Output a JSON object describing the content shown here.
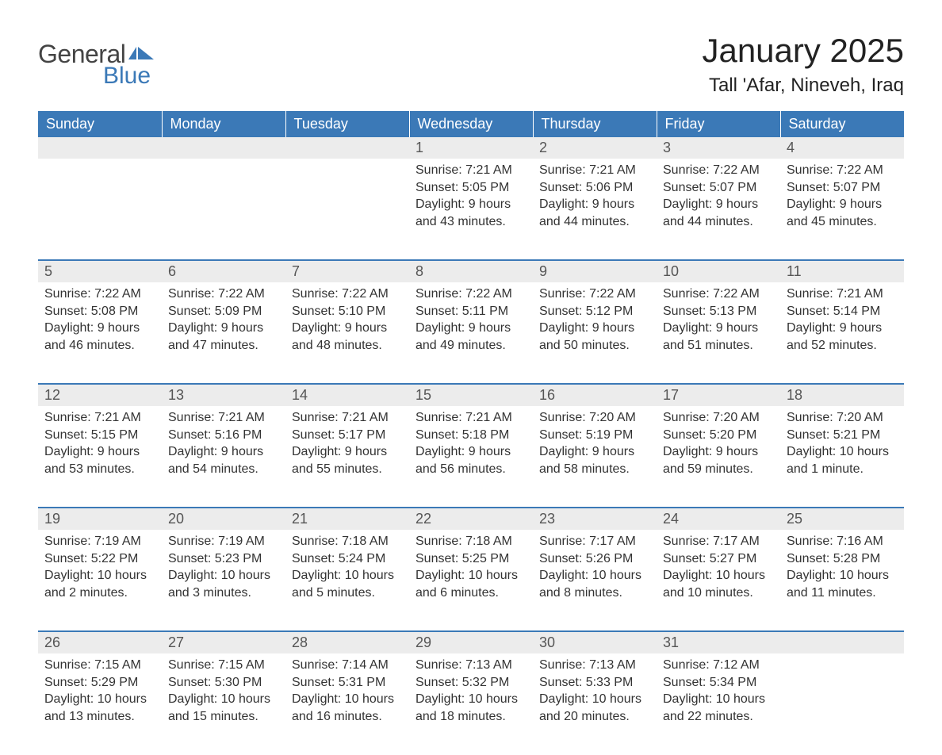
{
  "logo": {
    "text1": "General",
    "text2": "Blue",
    "flag_color": "#3b79b7"
  },
  "title": "January 2025",
  "location": "Tall 'Afar, Nineveh, Iraq",
  "colors": {
    "header_bg": "#3b79b7",
    "header_text": "#ffffff",
    "daynum_bg": "#ececec",
    "daynum_text": "#555555",
    "body_text": "#333333",
    "border_top": "#3b79b7",
    "page_bg": "#ffffff"
  },
  "typography": {
    "title_fontsize": 42,
    "location_fontsize": 24,
    "header_fontsize": 18,
    "daynum_fontsize": 18,
    "cell_fontsize": 16,
    "font_family": "Arial"
  },
  "weekdays": [
    "Sunday",
    "Monday",
    "Tuesday",
    "Wednesday",
    "Thursday",
    "Friday",
    "Saturday"
  ],
  "weeks": [
    [
      null,
      null,
      null,
      {
        "d": "1",
        "sr": "Sunrise: 7:21 AM",
        "ss": "Sunset: 5:05 PM",
        "dl1": "Daylight: 9 hours",
        "dl2": "and 43 minutes."
      },
      {
        "d": "2",
        "sr": "Sunrise: 7:21 AM",
        "ss": "Sunset: 5:06 PM",
        "dl1": "Daylight: 9 hours",
        "dl2": "and 44 minutes."
      },
      {
        "d": "3",
        "sr": "Sunrise: 7:22 AM",
        "ss": "Sunset: 5:07 PM",
        "dl1": "Daylight: 9 hours",
        "dl2": "and 44 minutes."
      },
      {
        "d": "4",
        "sr": "Sunrise: 7:22 AM",
        "ss": "Sunset: 5:07 PM",
        "dl1": "Daylight: 9 hours",
        "dl2": "and 45 minutes."
      }
    ],
    [
      {
        "d": "5",
        "sr": "Sunrise: 7:22 AM",
        "ss": "Sunset: 5:08 PM",
        "dl1": "Daylight: 9 hours",
        "dl2": "and 46 minutes."
      },
      {
        "d": "6",
        "sr": "Sunrise: 7:22 AM",
        "ss": "Sunset: 5:09 PM",
        "dl1": "Daylight: 9 hours",
        "dl2": "and 47 minutes."
      },
      {
        "d": "7",
        "sr": "Sunrise: 7:22 AM",
        "ss": "Sunset: 5:10 PM",
        "dl1": "Daylight: 9 hours",
        "dl2": "and 48 minutes."
      },
      {
        "d": "8",
        "sr": "Sunrise: 7:22 AM",
        "ss": "Sunset: 5:11 PM",
        "dl1": "Daylight: 9 hours",
        "dl2": "and 49 minutes."
      },
      {
        "d": "9",
        "sr": "Sunrise: 7:22 AM",
        "ss": "Sunset: 5:12 PM",
        "dl1": "Daylight: 9 hours",
        "dl2": "and 50 minutes."
      },
      {
        "d": "10",
        "sr": "Sunrise: 7:22 AM",
        "ss": "Sunset: 5:13 PM",
        "dl1": "Daylight: 9 hours",
        "dl2": "and 51 minutes."
      },
      {
        "d": "11",
        "sr": "Sunrise: 7:21 AM",
        "ss": "Sunset: 5:14 PM",
        "dl1": "Daylight: 9 hours",
        "dl2": "and 52 minutes."
      }
    ],
    [
      {
        "d": "12",
        "sr": "Sunrise: 7:21 AM",
        "ss": "Sunset: 5:15 PM",
        "dl1": "Daylight: 9 hours",
        "dl2": "and 53 minutes."
      },
      {
        "d": "13",
        "sr": "Sunrise: 7:21 AM",
        "ss": "Sunset: 5:16 PM",
        "dl1": "Daylight: 9 hours",
        "dl2": "and 54 minutes."
      },
      {
        "d": "14",
        "sr": "Sunrise: 7:21 AM",
        "ss": "Sunset: 5:17 PM",
        "dl1": "Daylight: 9 hours",
        "dl2": "and 55 minutes."
      },
      {
        "d": "15",
        "sr": "Sunrise: 7:21 AM",
        "ss": "Sunset: 5:18 PM",
        "dl1": "Daylight: 9 hours",
        "dl2": "and 56 minutes."
      },
      {
        "d": "16",
        "sr": "Sunrise: 7:20 AM",
        "ss": "Sunset: 5:19 PM",
        "dl1": "Daylight: 9 hours",
        "dl2": "and 58 minutes."
      },
      {
        "d": "17",
        "sr": "Sunrise: 7:20 AM",
        "ss": "Sunset: 5:20 PM",
        "dl1": "Daylight: 9 hours",
        "dl2": "and 59 minutes."
      },
      {
        "d": "18",
        "sr": "Sunrise: 7:20 AM",
        "ss": "Sunset: 5:21 PM",
        "dl1": "Daylight: 10 hours",
        "dl2": "and 1 minute."
      }
    ],
    [
      {
        "d": "19",
        "sr": "Sunrise: 7:19 AM",
        "ss": "Sunset: 5:22 PM",
        "dl1": "Daylight: 10 hours",
        "dl2": "and 2 minutes."
      },
      {
        "d": "20",
        "sr": "Sunrise: 7:19 AM",
        "ss": "Sunset: 5:23 PM",
        "dl1": "Daylight: 10 hours",
        "dl2": "and 3 minutes."
      },
      {
        "d": "21",
        "sr": "Sunrise: 7:18 AM",
        "ss": "Sunset: 5:24 PM",
        "dl1": "Daylight: 10 hours",
        "dl2": "and 5 minutes."
      },
      {
        "d": "22",
        "sr": "Sunrise: 7:18 AM",
        "ss": "Sunset: 5:25 PM",
        "dl1": "Daylight: 10 hours",
        "dl2": "and 6 minutes."
      },
      {
        "d": "23",
        "sr": "Sunrise: 7:17 AM",
        "ss": "Sunset: 5:26 PM",
        "dl1": "Daylight: 10 hours",
        "dl2": "and 8 minutes."
      },
      {
        "d": "24",
        "sr": "Sunrise: 7:17 AM",
        "ss": "Sunset: 5:27 PM",
        "dl1": "Daylight: 10 hours",
        "dl2": "and 10 minutes."
      },
      {
        "d": "25",
        "sr": "Sunrise: 7:16 AM",
        "ss": "Sunset: 5:28 PM",
        "dl1": "Daylight: 10 hours",
        "dl2": "and 11 minutes."
      }
    ],
    [
      {
        "d": "26",
        "sr": "Sunrise: 7:15 AM",
        "ss": "Sunset: 5:29 PM",
        "dl1": "Daylight: 10 hours",
        "dl2": "and 13 minutes."
      },
      {
        "d": "27",
        "sr": "Sunrise: 7:15 AM",
        "ss": "Sunset: 5:30 PM",
        "dl1": "Daylight: 10 hours",
        "dl2": "and 15 minutes."
      },
      {
        "d": "28",
        "sr": "Sunrise: 7:14 AM",
        "ss": "Sunset: 5:31 PM",
        "dl1": "Daylight: 10 hours",
        "dl2": "and 16 minutes."
      },
      {
        "d": "29",
        "sr": "Sunrise: 7:13 AM",
        "ss": "Sunset: 5:32 PM",
        "dl1": "Daylight: 10 hours",
        "dl2": "and 18 minutes."
      },
      {
        "d": "30",
        "sr": "Sunrise: 7:13 AM",
        "ss": "Sunset: 5:33 PM",
        "dl1": "Daylight: 10 hours",
        "dl2": "and 20 minutes."
      },
      {
        "d": "31",
        "sr": "Sunrise: 7:12 AM",
        "ss": "Sunset: 5:34 PM",
        "dl1": "Daylight: 10 hours",
        "dl2": "and 22 minutes."
      },
      null
    ]
  ]
}
